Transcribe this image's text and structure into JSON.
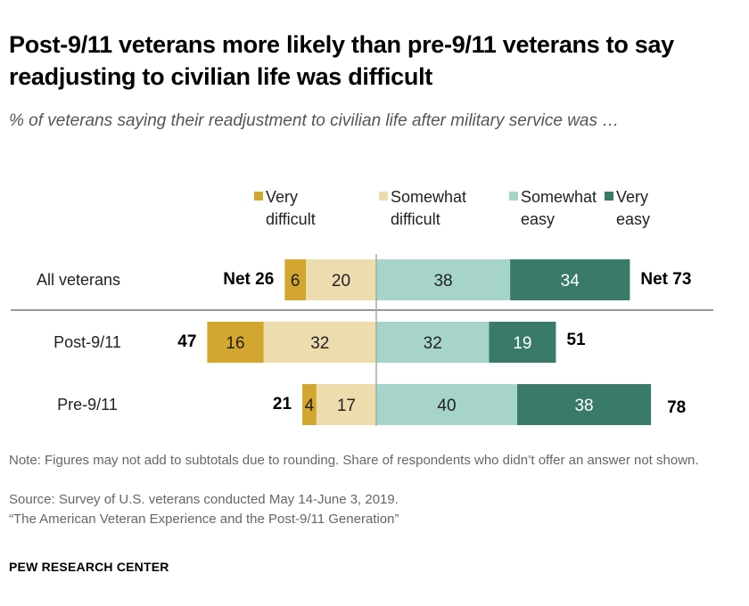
{
  "title": "Post-9/11 veterans more likely than pre-9/11 veterans to say readjusting to civilian life was difficult",
  "subtitle": "% of veterans saying their readjustment to civilian life after military service was …",
  "note": "Note: Figures may not add to subtotals due to rounding. Share of respondents who didn’t offer an answer not shown.",
  "source": "Source: Survey of U.S. veterans conducted May 14-June 3, 2019.",
  "report": "“The American Veteran Experience and the Post-9/11 Generation”",
  "brand": "PEW RESEARCH CENTER",
  "chart_data": {
    "type": "bar",
    "orientation": "horizontal-diverging",
    "categories": [
      "All veterans",
      "Post-9/11",
      "Pre-9/11"
    ],
    "series": [
      {
        "name": "Very difficult",
        "legend_lines": [
          "Very",
          "difficult"
        ],
        "color": "#d3a62f",
        "side": "left",
        "values": [
          6,
          16,
          4
        ]
      },
      {
        "name": "Somewhat difficult",
        "legend_lines": [
          "Somewhat",
          "difficult"
        ],
        "color": "#eddcad",
        "side": "left",
        "values": [
          20,
          32,
          17
        ]
      },
      {
        "name": "Somewhat easy",
        "legend_lines": [
          "Somewhat",
          "easy"
        ],
        "color": "#a6d4ca",
        "side": "right",
        "values": [
          38,
          32,
          40
        ]
      },
      {
        "name": "Very easy",
        "legend_lines": [
          "Very",
          "easy"
        ],
        "color": "#3a7a69",
        "side": "right",
        "values": [
          34,
          19,
          38
        ]
      }
    ],
    "net_difficult": [
      "Net 26",
      "47",
      "21"
    ],
    "net_easy": [
      "Net 73",
      "51",
      "78"
    ]
  }
}
